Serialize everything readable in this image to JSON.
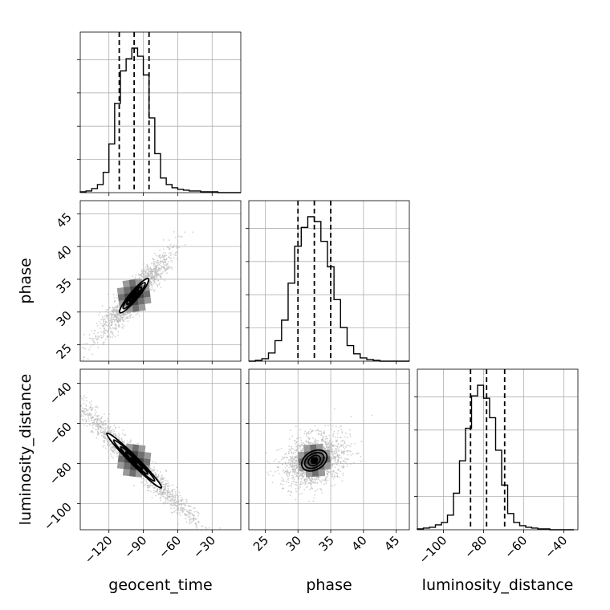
{
  "chart_data": {
    "type": "corner",
    "parameters": [
      "geocent_time",
      "phase",
      "luminosity_distance"
    ],
    "ranges": {
      "geocent_time": [
        -145,
        -5
      ],
      "phase": [
        22.5,
        47
      ],
      "luminosity_distance": [
        -113,
        -33
      ]
    },
    "ticks": {
      "geocent_time": [
        -120,
        -90,
        -60,
        -30
      ],
      "phase": [
        25,
        30,
        35,
        40,
        45
      ],
      "luminosity_distance": [
        -100,
        -80,
        -60,
        -40
      ]
    },
    "tick_labels": {
      "geocent_time": [
        "−120",
        "−90",
        "−60",
        "−30"
      ],
      "phase": [
        "25",
        "30",
        "35",
        "40",
        "45"
      ],
      "luminosity_distance": [
        "−100",
        "−80",
        "−60",
        "−40"
      ]
    },
    "quantiles": {
      "geocent_time": [
        -111,
        -98,
        -85
      ],
      "phase": [
        30,
        32.5,
        35
      ],
      "luminosity_distance": [
        -86.5,
        -78.5,
        -69.5
      ]
    },
    "histograms": {
      "geocent_time": {
        "edges": [
          -145,
          -140,
          -135,
          -130,
          -125,
          -120,
          -115,
          -110,
          -105,
          -100,
          -95,
          -90,
          -85,
          -80,
          -75,
          -70,
          -65,
          -60,
          -55,
          -50,
          -45,
          -40,
          -35,
          -30,
          -25,
          -20,
          -15,
          -10,
          -5
        ],
        "counts": [
          1,
          2,
          5,
          10,
          25,
          60,
          110,
          150,
          165,
          178,
          168,
          145,
          92,
          48,
          18,
          10,
          6,
          4,
          3,
          2,
          2,
          1,
          1,
          1,
          0,
          0,
          0,
          0
        ]
      },
      "phase": {
        "edges": [
          22.5,
          23.5,
          24.5,
          25.5,
          26.5,
          27.5,
          28.5,
          29.5,
          30.5,
          31.5,
          32.5,
          33.5,
          34.5,
          35.5,
          36.5,
          37.5,
          38.5,
          39.5,
          40.5,
          41.5,
          42.5,
          43.5,
          44.5,
          45.5,
          46.5,
          47
        ],
        "counts": [
          0,
          1,
          3,
          10,
          25,
          50,
          95,
          140,
          163,
          176,
          170,
          146,
          115,
          75,
          41,
          19,
          9,
          4,
          2,
          1,
          0,
          0,
          0,
          0,
          0
        ]
      },
      "luminosity_distance": {
        "edges": [
          -113,
          -110,
          -107,
          -104,
          -101,
          -98,
          -95,
          -92,
          -89,
          -86,
          -83,
          -80,
          -77,
          -74,
          -71,
          -68,
          -65,
          -62,
          -59,
          -56,
          -53,
          -50,
          -47,
          -44,
          -41,
          -38,
          -35
        ],
        "counts": [
          1,
          2,
          3,
          6,
          9,
          18,
          45,
          85,
          125,
          165,
          178,
          162,
          138,
          98,
          55,
          20,
          9,
          5,
          3,
          2,
          1,
          1,
          0,
          0,
          0,
          0
        ]
      }
    },
    "pairs": [
      {
        "x": "geocent_time",
        "y": "phase",
        "center": [
          -98,
          32.5
        ],
        "contours": [
          {
            "rx": 18,
            "ry": 3.2,
            "rot": -50
          },
          {
            "rx": 28,
            "ry": 5.2,
            "rot": -50
          },
          {
            "rx": 42,
            "ry": 7.8,
            "rot": -50
          },
          {
            "rx": 55,
            "ry": 10.5,
            "rot": -50
          }
        ]
      },
      {
        "x": "geocent_time",
        "y": "luminosity_distance",
        "center": [
          -98,
          -78.5
        ],
        "contours": [
          {
            "rx": 30,
            "ry": 3.3,
            "rot": 45
          },
          {
            "rx": 48,
            "ry": 5.3,
            "rot": 45
          },
          {
            "rx": 72,
            "ry": 7.5,
            "rot": 45
          },
          {
            "rx": 96,
            "ry": 10,
            "rot": 45
          }
        ]
      },
      {
        "x": "phase",
        "y": "luminosity_distance",
        "center": [
          32.5,
          -78.5
        ],
        "contours": [
          {
            "rx": 8,
            "ry": 6.5,
            "rot": -30
          },
          {
            "rx": 16,
            "ry": 11.5,
            "rot": -30
          },
          {
            "rx": 26,
            "ry": 17,
            "rot": -30
          },
          {
            "rx": 34,
            "ry": 23,
            "rot": -30
          }
        ]
      }
    ],
    "grid": true,
    "colors": {
      "lines": "#000000",
      "grid": "#b0b0b0",
      "points": "#b4b4b4",
      "fill": "#5a5a5a"
    }
  }
}
